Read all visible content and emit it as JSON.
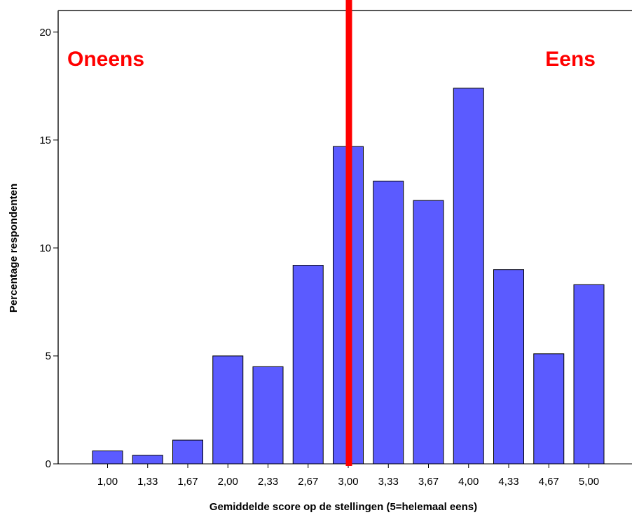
{
  "chart_data": {
    "type": "bar",
    "title": "",
    "xlabel": "Gemiddelde score op de stellingen (5=helemaal eens)",
    "ylabel": "Percentage respondenten",
    "categories": [
      "1,00",
      "1,33",
      "1,67",
      "2,00",
      "2,33",
      "2,67",
      "3,00",
      "3,33",
      "3,67",
      "4,00",
      "4,33",
      "4,67",
      "5,00"
    ],
    "values": [
      0.6,
      0.4,
      1.1,
      5.0,
      4.5,
      9.2,
      14.7,
      13.1,
      12.2,
      17.4,
      9.0,
      5.1,
      8.3
    ],
    "ylim": [
      0,
      21
    ],
    "yticks": [
      0,
      5,
      10,
      15,
      20
    ],
    "grid": false,
    "bar_color": "#5b5bff",
    "marker_line": {
      "x": "3,00",
      "color": "#ff0000"
    },
    "annotations": [
      {
        "text": "Oneens",
        "position": "top-left",
        "color": "#ff0000"
      },
      {
        "text": "Eens",
        "position": "top-right",
        "color": "#ff0000"
      }
    ]
  }
}
